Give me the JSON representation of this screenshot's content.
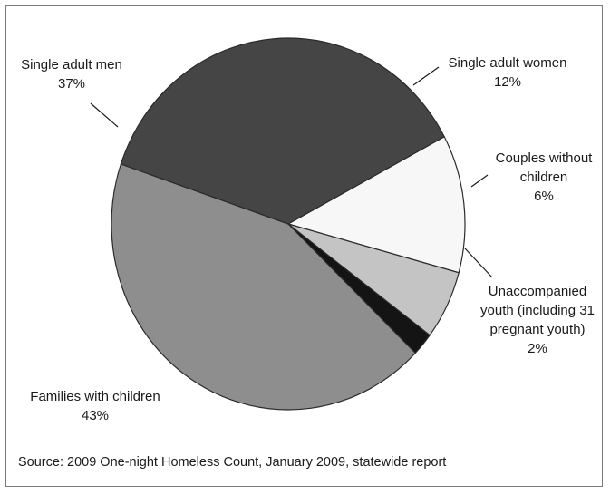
{
  "chart_data": {
    "type": "pie",
    "slices": [
      {
        "label_lines": [
          "Single adult women",
          "12%"
        ],
        "value": 12,
        "color": "#f7f7f7"
      },
      {
        "label_lines": [
          "Couples without",
          "children",
          "6%"
        ],
        "value": 6,
        "color": "#c4c4c4"
      },
      {
        "label_lines": [
          "Unaccompanied",
          "youth (including 31",
          "pregnant youth)",
          "2%"
        ],
        "value": 2,
        "color": "#141414"
      },
      {
        "label_lines": [
          "Families with children",
          "43%"
        ],
        "value": 43,
        "color": "#8e8e8e"
      },
      {
        "label_lines": [
          "Single adult men",
          "37%"
        ],
        "value": 37,
        "color": "#454545"
      }
    ],
    "source": "Source: 2009 One-night Homeless Count, January 2009, statewide report"
  }
}
